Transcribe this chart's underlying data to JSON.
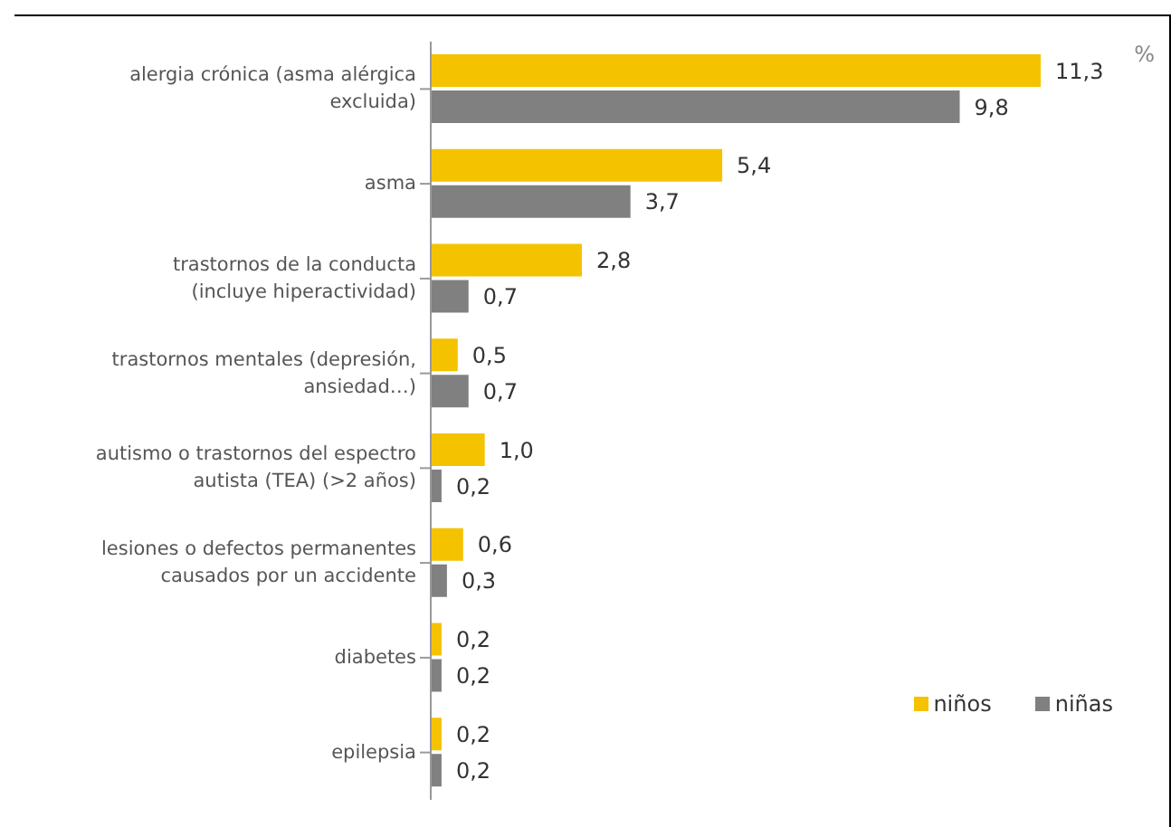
{
  "chart_data": {
    "type": "bar",
    "orientation": "horizontal",
    "categories": [
      "alergia crónica (asma alérgica excluida)",
      "asma",
      "trastornos de la conducta (incluye hiperactividad)",
      "trastornos mentales (depresión, ansiedad…)",
      "autismo o trastornos del espectro autista (TEA) (>2 años)",
      "lesiones o defectos permanentes causados por un accidente",
      "diabetes",
      "epilepsia"
    ],
    "series": [
      {
        "name": "niños",
        "color": "#f5c200",
        "values": [
          11.3,
          5.4,
          2.8,
          0.5,
          1.0,
          0.6,
          0.2,
          0.2
        ],
        "value_labels": [
          "11,3",
          "5,4",
          "2,8",
          "0,5",
          "1,0",
          "0,6",
          "0,2",
          "0,2"
        ]
      },
      {
        "name": "niñas",
        "color": "#808080",
        "values": [
          9.8,
          3.7,
          0.7,
          0.7,
          0.2,
          0.3,
          0.2,
          0.2
        ],
        "value_labels": [
          "9,8",
          "3,7",
          "0,7",
          "0,7",
          "0,2",
          "0,3",
          "0,2",
          "0,2"
        ]
      }
    ],
    "legend": "bottom right",
    "grid": false,
    "annotations": [
      "%"
    ]
  }
}
